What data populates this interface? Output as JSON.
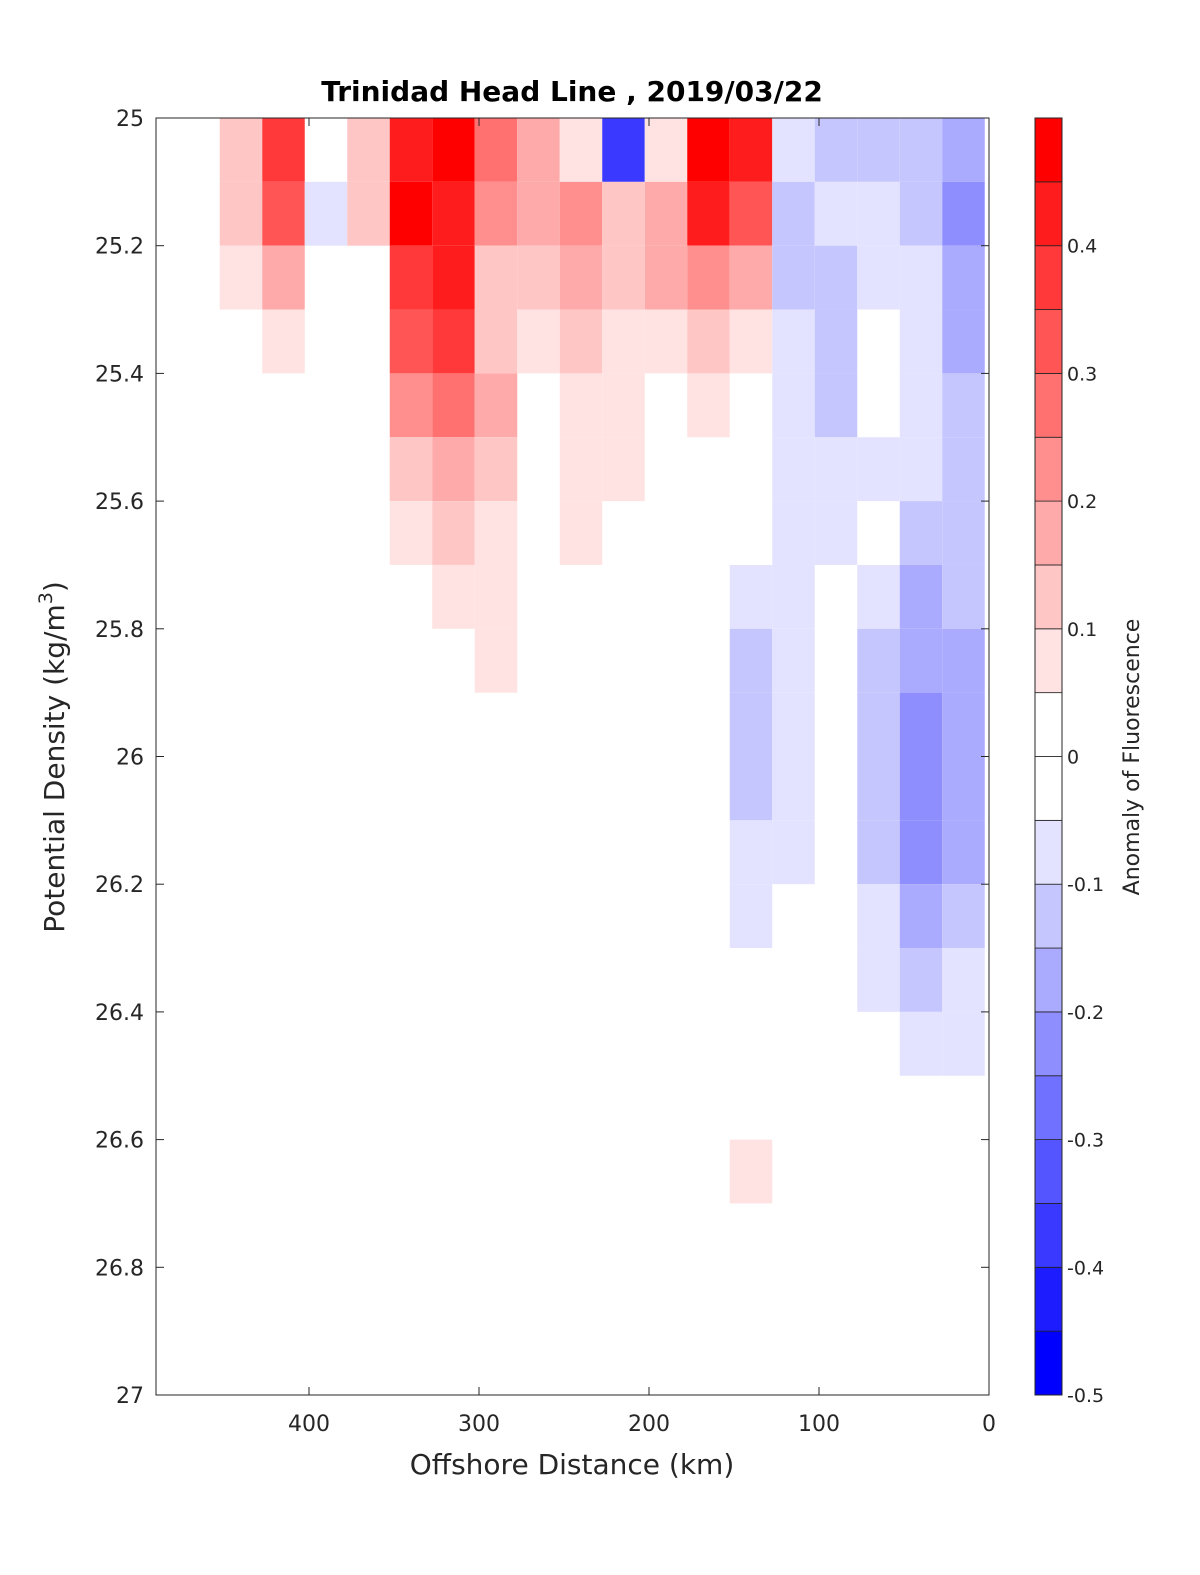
{
  "chart_data": {
    "type": "heatmap",
    "title": "Trinidad Head Line , 2019/03/22",
    "xlabel": "Offshore Distance (km)",
    "ylabel": "Potential Density (kg/m",
    "ylabel_superscript": "3",
    "ylabel_close": ")",
    "colorbar_label": "Anomaly of Fluorescence",
    "xlim": [
      490,
      0
    ],
    "x_reversed": true,
    "ylim": [
      25,
      27
    ],
    "y_reversed": true,
    "clim": [
      -0.5,
      0.5
    ],
    "contour_step": 0.05,
    "colormap": {
      "negative": "#0000ff",
      "zero": "#ffffff",
      "positive": "#ff0000"
    },
    "x_ticks": [
      "400",
      "300",
      "200",
      "100",
      "0"
    ],
    "x_tick_values": [
      400,
      300,
      200,
      100,
      0
    ],
    "y_ticks": [
      "25",
      "25.2",
      "25.4",
      "25.6",
      "25.8",
      "26",
      "26.2",
      "26.4",
      "26.6",
      "26.8",
      "27"
    ],
    "y_tick_values": [
      25,
      25.2,
      25.4,
      25.6,
      25.8,
      26,
      26.2,
      26.4,
      26.6,
      26.8,
      27
    ],
    "colorbar_ticks": [
      "0.4",
      "0.3",
      "0.2",
      "0.1",
      "0",
      "-0.1",
      "-0.2",
      "-0.3",
      "-0.4",
      "-0.5"
    ],
    "colorbar_tick_values": [
      0.4,
      0.3,
      0.2,
      0.1,
      0,
      -0.1,
      -0.2,
      -0.3,
      -0.4,
      -0.5
    ],
    "grid": false,
    "x": [
      440,
      415,
      390,
      365,
      340,
      315,
      290,
      265,
      240,
      215,
      190,
      165,
      140,
      115,
      90,
      65,
      40,
      15
    ],
    "y": [
      25.05,
      25.15,
      25.25,
      25.35,
      25.45,
      25.55,
      25.65,
      25.75,
      25.85,
      25.95,
      26.05,
      26.15,
      26.25,
      26.35,
      26.45,
      26.55,
      26.65,
      26.75,
      26.85,
      26.95
    ],
    "z": [
      [
        0.1,
        0.35,
        0,
        0.1,
        0.4,
        0.45,
        0.25,
        0.15,
        0.05,
        -0.35,
        0.05,
        0.45,
        0.4,
        -0.07,
        -0.1,
        -0.1,
        -0.1,
        -0.15
      ],
      [
        0.1,
        0.3,
        -0.07,
        0.1,
        0.45,
        0.4,
        0.2,
        0.15,
        0.2,
        0.1,
        0.15,
        0.4,
        0.3,
        -0.1,
        -0.07,
        -0.07,
        -0.1,
        -0.2
      ],
      [
        0.05,
        0.15,
        0,
        0,
        0.35,
        0.4,
        0.1,
        0.1,
        0.15,
        0.1,
        0.15,
        0.2,
        0.15,
        -0.1,
        -0.1,
        -0.07,
        -0.07,
        -0.15
      ],
      [
        0,
        0.05,
        0,
        0,
        0.3,
        0.35,
        0.1,
        0.05,
        0.1,
        0.05,
        0.05,
        0.1,
        0.05,
        -0.07,
        -0.1,
        0,
        -0.07,
        -0.15
      ],
      [
        0,
        0,
        0,
        0,
        0.2,
        0.25,
        0.15,
        0,
        0.05,
        0.05,
        0,
        0.05,
        0,
        -0.07,
        -0.1,
        0,
        -0.07,
        -0.1
      ],
      [
        0,
        0,
        0,
        0,
        0.1,
        0.15,
        0.1,
        0,
        0.05,
        0.05,
        0,
        0,
        0,
        -0.07,
        -0.07,
        -0.07,
        -0.07,
        -0.1
      ],
      [
        0,
        0,
        0,
        0,
        0.05,
        0.1,
        0.05,
        0,
        0.05,
        0,
        0,
        0,
        0,
        -0.07,
        -0.07,
        0,
        -0.1,
        -0.1
      ],
      [
        0,
        0,
        0,
        0,
        0,
        0.05,
        0.05,
        0,
        0,
        0,
        0,
        0,
        -0.07,
        -0.07,
        0,
        -0.07,
        -0.15,
        -0.1
      ],
      [
        0,
        0,
        0,
        0,
        0,
        0,
        0.05,
        0,
        0,
        0,
        0,
        0,
        -0.1,
        -0.07,
        0,
        -0.1,
        -0.15,
        -0.15
      ],
      [
        0,
        0,
        0,
        0,
        0,
        0,
        0,
        0,
        0,
        0,
        0,
        0,
        -0.1,
        -0.07,
        0,
        -0.1,
        -0.2,
        -0.15
      ],
      [
        0,
        0,
        0,
        0,
        0,
        0,
        0,
        0,
        0,
        0,
        0,
        0,
        -0.1,
        -0.07,
        0,
        -0.1,
        -0.2,
        -0.15
      ],
      [
        0,
        0,
        0,
        0,
        0,
        0,
        0,
        0,
        0,
        0,
        0,
        0,
        -0.07,
        -0.07,
        0,
        -0.1,
        -0.2,
        -0.15
      ],
      [
        0,
        0,
        0,
        0,
        0,
        0,
        0,
        0,
        0,
        0,
        0,
        0,
        -0.07,
        0,
        0,
        -0.07,
        -0.15,
        -0.1
      ],
      [
        0,
        0,
        0,
        0,
        0,
        0,
        0,
        0,
        0,
        0,
        0,
        0,
        0,
        0,
        0,
        -0.07,
        -0.1,
        -0.07
      ],
      [
        0,
        0,
        0,
        0,
        0,
        0,
        0,
        0,
        0,
        0,
        0,
        0,
        0,
        0,
        0,
        0,
        -0.07,
        -0.07
      ],
      [
        0,
        0,
        0,
        0,
        0,
        0,
        0,
        0,
        0,
        0,
        0,
        0,
        0,
        0,
        0,
        0,
        0,
        0
      ],
      [
        0,
        0,
        0,
        0,
        0,
        0,
        0,
        0,
        0,
        0,
        0,
        0,
        0.05,
        0,
        0,
        0,
        0,
        0
      ],
      [
        0,
        0,
        0,
        0,
        0,
        0,
        0,
        0,
        0,
        0,
        0,
        0,
        0,
        0,
        0,
        0,
        0,
        0
      ],
      [
        0,
        0,
        0,
        0,
        0,
        0,
        0,
        0,
        0,
        0,
        0,
        0,
        0,
        0,
        0,
        0,
        0,
        0
      ],
      [
        0,
        0,
        0,
        0,
        0,
        0,
        0,
        0,
        0,
        0,
        0,
        0,
        0,
        0,
        0,
        0,
        0,
        0
      ]
    ]
  }
}
